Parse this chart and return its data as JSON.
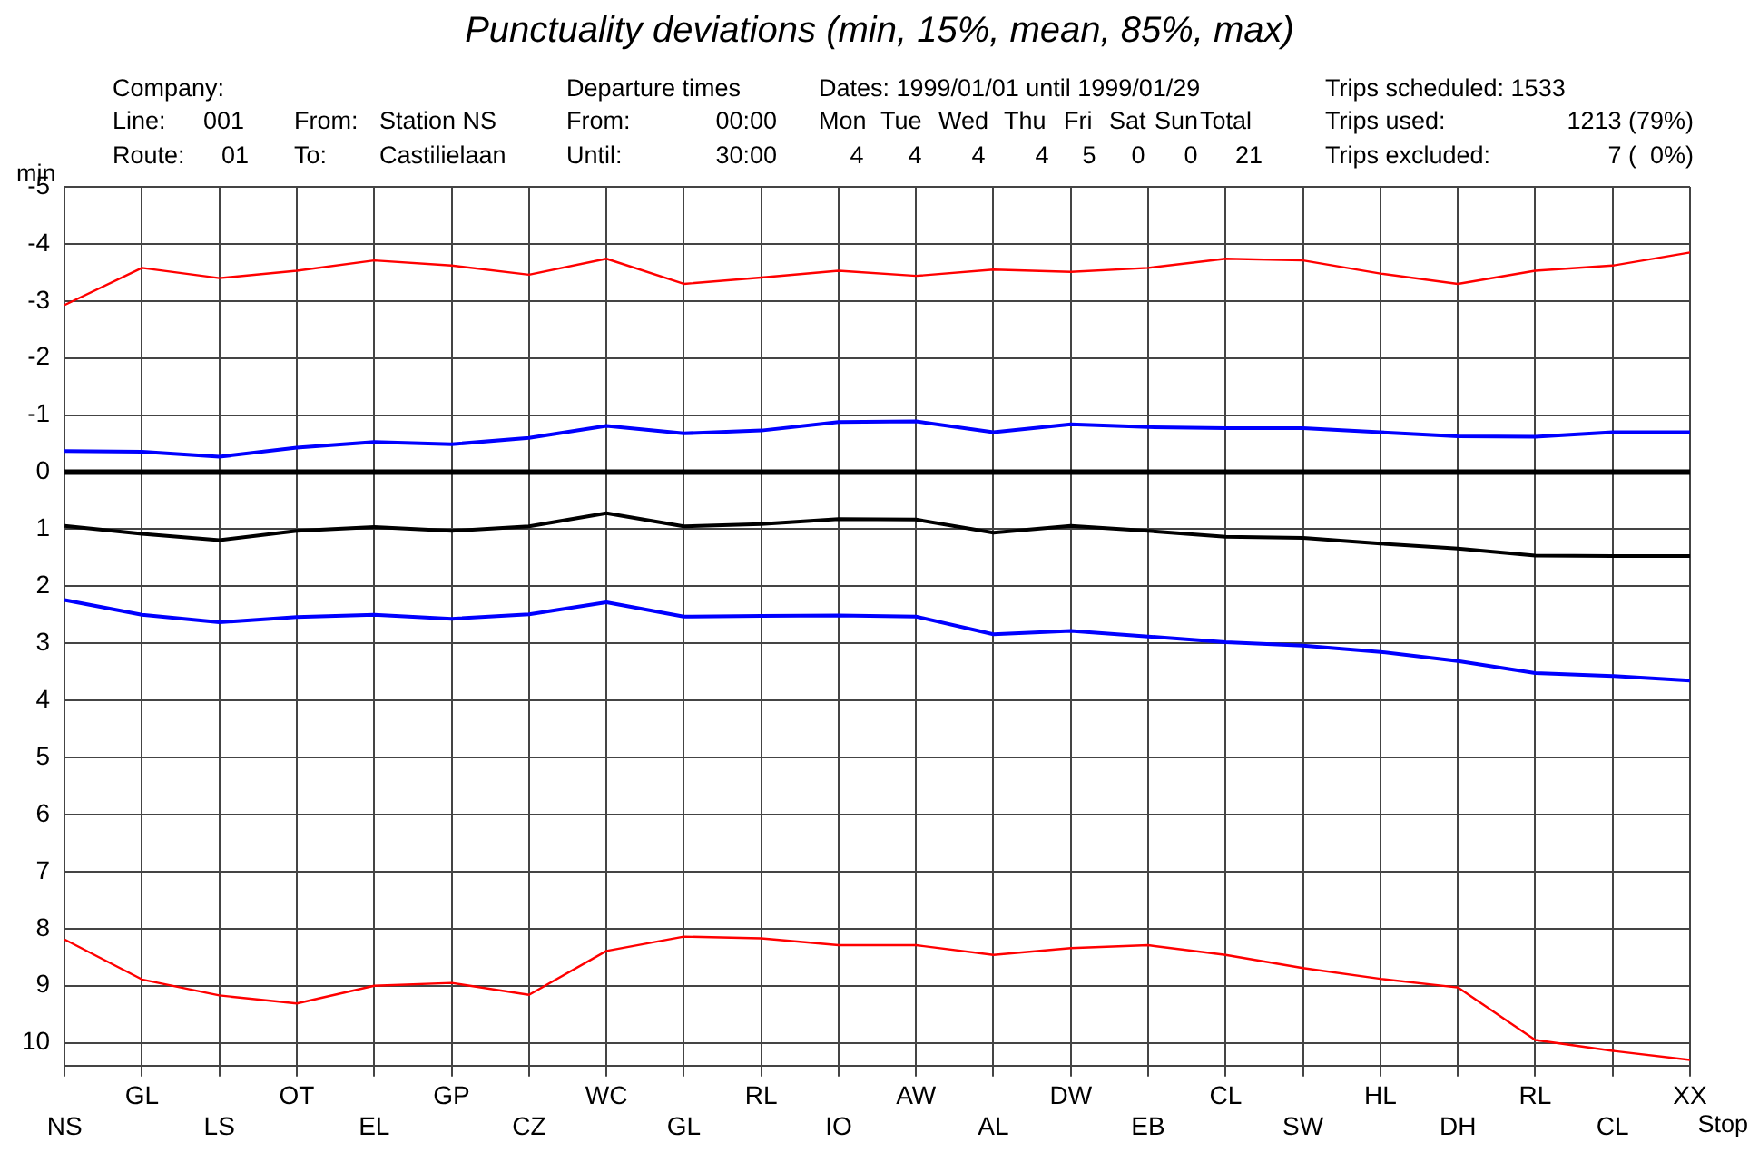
{
  "chart_data": {
    "type": "line",
    "title": "Punctuality deviations (min, 15%, mean, 85%, max)",
    "xlabel": "Stop",
    "ylabel": "min",
    "annotations": [
      "Company:",
      "Departure times",
      "Dates: 1999/01/01 until 1999/01/29",
      "Trips scheduled: 1533",
      "Line:",
      "001",
      "From:",
      "Station NS",
      "From:",
      "00:00",
      "Mon",
      "Tue",
      "Wed",
      "Thu",
      "Fri",
      "Sat",
      "Sun",
      "Total",
      "Trips used:",
      "1213 (79%)",
      "Route:",
      "01",
      "To:",
      "Castilielaan",
      "Until:",
      "30:00",
      "4",
      "4",
      "4",
      "4",
      "5",
      "0",
      "0",
      "21",
      "Trips excluded:",
      "7 (  0%)"
    ],
    "categories": [
      "NS",
      "GL",
      "LS",
      "OT",
      "EL",
      "GP",
      "CZ",
      "WC",
      "GL",
      "RL",
      "IO",
      "AW",
      "AL",
      "DW",
      "EB",
      "CL",
      "SW",
      "HL",
      "DH",
      "RL",
      "CL",
      "XX"
    ],
    "series": [
      {
        "color": "#ff0000",
        "values": [
          -2.93,
          -3.58,
          -3.4,
          -3.53,
          -3.71,
          -3.62,
          -3.46,
          -3.74,
          -3.3,
          -3.41,
          -3.53,
          -3.44,
          -3.55,
          -3.51,
          -3.58,
          -3.74,
          -3.71,
          -3.48,
          -3.3,
          -3.53,
          -3.62,
          -3.85
        ]
      },
      {
        "color": "#0000ff",
        "values": [
          -0.37,
          -0.36,
          -0.27,
          -0.43,
          -0.53,
          -0.49,
          -0.6,
          -0.81,
          -0.68,
          -0.73,
          -0.88,
          -0.89,
          -0.7,
          -0.84,
          -0.79,
          -0.77,
          -0.77,
          -0.7,
          -0.63,
          -0.62,
          -0.7,
          -0.7
        ]
      },
      {
        "color": "#000000",
        "values": [
          0.94,
          1.08,
          1.19,
          1.03,
          0.96,
          1.03,
          0.95,
          0.72,
          0.95,
          0.91,
          0.82,
          0.83,
          1.06,
          0.94,
          1.03,
          1.13,
          1.15,
          1.25,
          1.34,
          1.46,
          1.47,
          1.47
        ]
      },
      {
        "color": "#0000ff",
        "values": [
          2.24,
          2.5,
          2.63,
          2.54,
          2.5,
          2.57,
          2.49,
          2.28,
          2.53,
          2.52,
          2.51,
          2.53,
          2.84,
          2.78,
          2.88,
          2.98,
          3.04,
          3.15,
          3.31,
          3.52,
          3.57,
          3.65
        ]
      },
      {
        "color": "#ff0000",
        "values": [
          8.19,
          8.89,
          9.17,
          9.31,
          9.0,
          8.95,
          9.16,
          8.39,
          8.14,
          8.17,
          8.29,
          8.29,
          8.46,
          8.34,
          8.29,
          8.46,
          8.69,
          8.88,
          9.03,
          9.95,
          10.14,
          10.3
        ]
      }
    ],
    "ylim": [
      10.4,
      -5
    ],
    "yticks": [
      -5,
      -4,
      -3,
      -2,
      -1,
      0,
      1,
      2,
      3,
      4,
      5,
      6,
      7,
      8,
      9,
      10
    ],
    "grid": true,
    "ref_lines": [
      {
        "axis": "y",
        "value": 0,
        "color": "#000000"
      }
    ]
  }
}
